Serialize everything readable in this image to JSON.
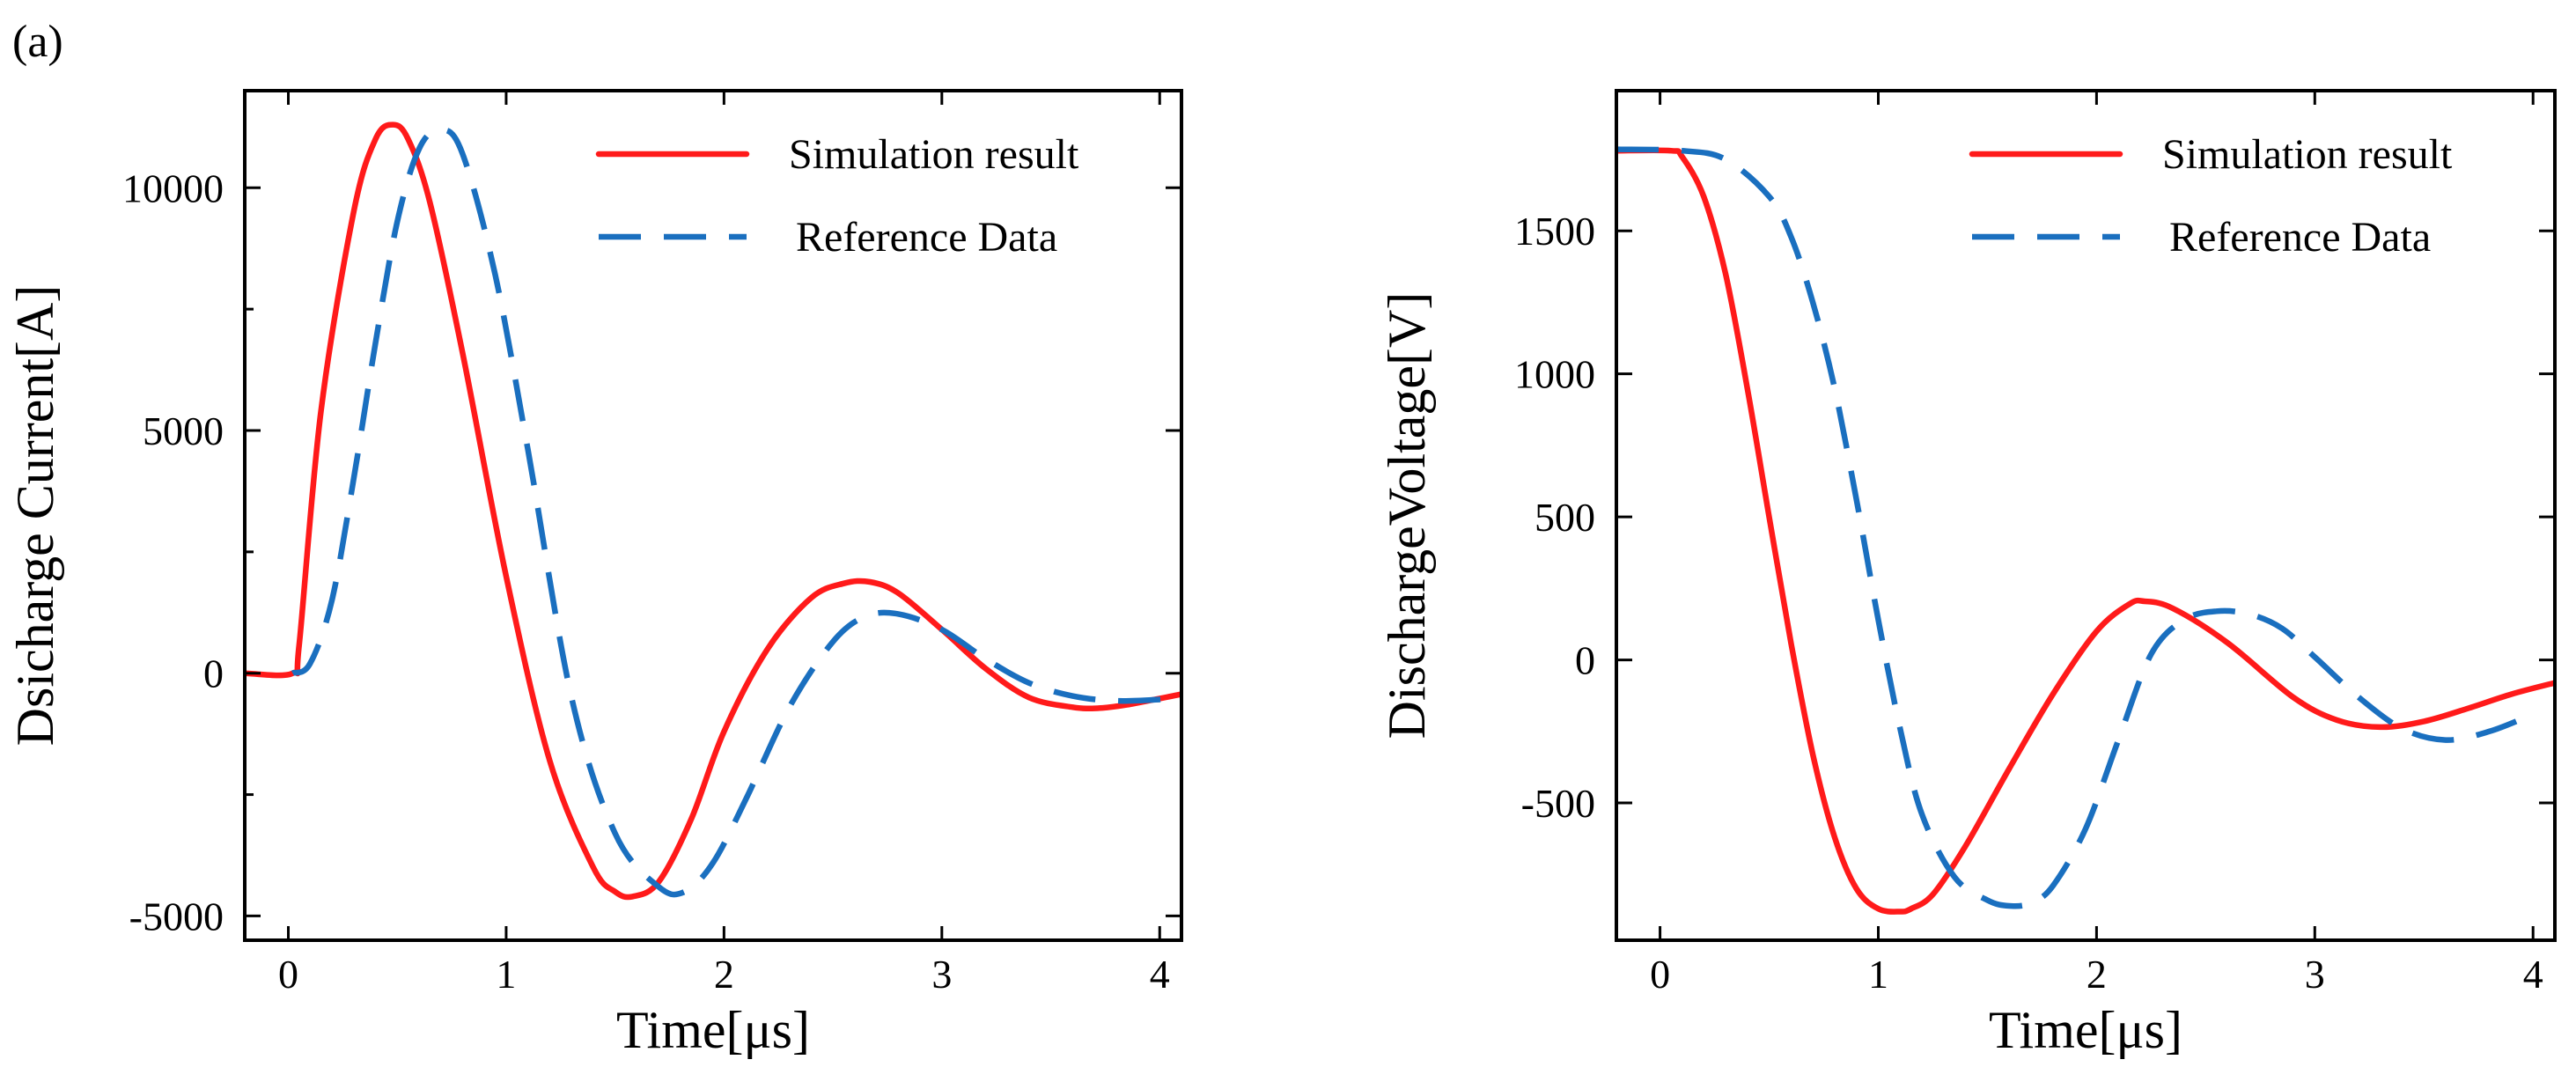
{
  "figure_label": "(a)",
  "colors": {
    "simulation": "#ff1a1a",
    "reference": "#1a6fbf",
    "axes": "#000000"
  },
  "chart_data": [
    {
      "type": "line",
      "title": "",
      "xlabel": "Time[μs]",
      "ylabel": "Dsicharge Current[A]",
      "xlim": [
        -0.2,
        4.1
      ],
      "ylim": [
        -5500,
        12000
      ],
      "xticks": [
        0,
        1,
        2,
        3,
        4
      ],
      "yticks": [
        -5000,
        0,
        5000,
        10000
      ],
      "yminor": [
        -2500,
        2500,
        7500
      ],
      "legend_position": "top-right",
      "series": [
        {
          "name": "Simulation result",
          "style": "solid",
          "x": [
            -0.2,
            0.02,
            0.05,
            0.15,
            0.3,
            0.4,
            0.48,
            0.55,
            0.65,
            0.8,
            1.0,
            1.2,
            1.4,
            1.5,
            1.58,
            1.7,
            1.85,
            2.0,
            2.2,
            2.4,
            2.55,
            2.67,
            2.8,
            3.0,
            3.2,
            3.4,
            3.6,
            3.72,
            3.85,
            4.0,
            4.1
          ],
          "y": [
            0,
            0,
            600,
            5400,
            9500,
            11000,
            11300,
            11000,
            9700,
            6600,
            2000,
            -1800,
            -4000,
            -4500,
            -4600,
            -4300,
            -3000,
            -1200,
            500,
            1550,
            1850,
            1880,
            1650,
            900,
            100,
            -500,
            -700,
            -720,
            -650,
            -520,
            -430
          ]
        },
        {
          "name": "Reference Data",
          "style": "dashed",
          "x": [
            0.02,
            0.1,
            0.2,
            0.3,
            0.4,
            0.5,
            0.6,
            0.7,
            0.8,
            0.95,
            1.1,
            1.3,
            1.5,
            1.7,
            1.82,
            1.95,
            2.1,
            2.3,
            2.5,
            2.65,
            2.8,
            3.0,
            3.2,
            3.4,
            3.6,
            3.8,
            4.0,
            4.1
          ],
          "y": [
            0,
            200,
            1500,
            4000,
            6800,
            9300,
            10800,
            11200,
            10700,
            8200,
            4600,
            -500,
            -3300,
            -4400,
            -4500,
            -3900,
            -2600,
            -700,
            650,
            1170,
            1220,
            900,
            300,
            -200,
            -470,
            -570,
            -540,
            -490
          ]
        }
      ]
    },
    {
      "type": "line",
      "title": "",
      "xlabel": "Time[μs]",
      "ylabel": "DischargeVoltage[V]",
      "xlim": [
        -0.2,
        4.1
      ],
      "ylim": [
        -980,
        1990
      ],
      "xticks": [
        0,
        1,
        2,
        3,
        4
      ],
      "yticks": [
        -500,
        0,
        500,
        1000,
        1500
      ],
      "legend_position": "top-right",
      "series": [
        {
          "name": "Simulation result",
          "style": "solid",
          "x": [
            -0.2,
            0.05,
            0.1,
            0.2,
            0.3,
            0.4,
            0.5,
            0.6,
            0.7,
            0.8,
            0.9,
            1.0,
            1.1,
            1.15,
            1.25,
            1.4,
            1.6,
            1.8,
            2.0,
            2.15,
            2.22,
            2.35,
            2.6,
            2.9,
            3.1,
            3.3,
            3.5,
            3.7,
            3.9,
            4.1
          ],
          "y": [
            1780,
            1780,
            1760,
            1620,
            1350,
            950,
            500,
            60,
            -330,
            -620,
            -800,
            -870,
            -880,
            -870,
            -820,
            -650,
            -380,
            -120,
            100,
            195,
            205,
            180,
            60,
            -130,
            -210,
            -235,
            -215,
            -170,
            -120,
            -80
          ]
        },
        {
          "name": "Reference Data",
          "style": "dashed",
          "x": [
            -0.2,
            0.1,
            0.3,
            0.5,
            0.6,
            0.7,
            0.8,
            0.9,
            1.0,
            1.1,
            1.2,
            1.35,
            1.5,
            1.6,
            1.7,
            1.8,
            1.95,
            2.1,
            2.25,
            2.4,
            2.55,
            2.7,
            2.85,
            3.0,
            3.2,
            3.4,
            3.6,
            3.8,
            4.0
          ],
          "y": [
            1785,
            1780,
            1750,
            1620,
            1480,
            1250,
            950,
            560,
            140,
            -240,
            -540,
            -760,
            -840,
            -860,
            -850,
            -790,
            -590,
            -280,
            20,
            140,
            170,
            160,
            110,
            10,
            -130,
            -240,
            -280,
            -250,
            -190
          ]
        }
      ]
    }
  ]
}
